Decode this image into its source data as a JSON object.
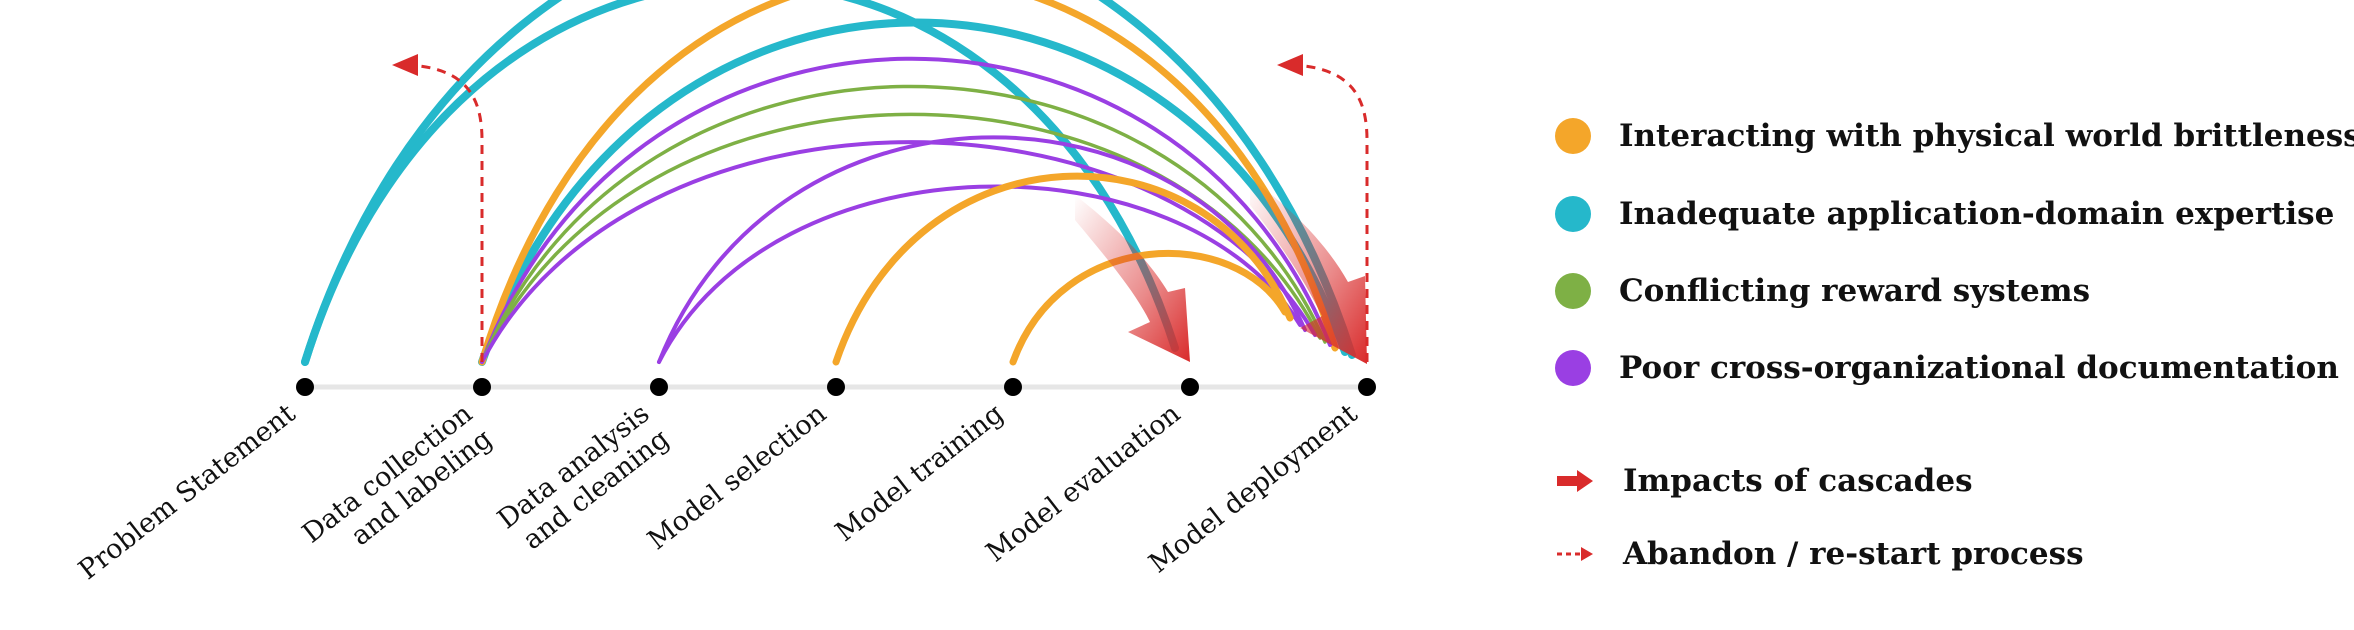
{
  "colors": {
    "physical_world": "#f4a62a",
    "domain_expertise": "#25b8cb",
    "reward_systems": "#7eb045",
    "documentation": "#9a3fe3",
    "impacts": "#d92b2b",
    "abandon": "#d92b2b",
    "timeline": "#e6e6e6",
    "node": "#000000"
  },
  "stages": [
    {
      "lines": [
        "Problem Statement"
      ]
    },
    {
      "lines": [
        "Data collection",
        "and labeling"
      ]
    },
    {
      "lines": [
        "Data analysis",
        "and cleaning"
      ]
    },
    {
      "lines": [
        "Model selection"
      ]
    },
    {
      "lines": [
        "Model training"
      ]
    },
    {
      "lines": [
        "Model evaluation"
      ]
    },
    {
      "lines": [
        "Model deployment"
      ]
    }
  ],
  "cascades": [
    {
      "type": "domain_expertise",
      "from": 0,
      "to": 6
    },
    {
      "type": "domain_expertise",
      "from": 0,
      "to": 5
    },
    {
      "type": "domain_expertise",
      "from": 1,
      "to": 6
    },
    {
      "type": "physical_world",
      "from": 1,
      "to": 6
    },
    {
      "type": "documentation",
      "from": 1,
      "to": 6
    },
    {
      "type": "reward_systems",
      "from": 1,
      "to": 6
    },
    {
      "type": "reward_systems",
      "from": 1,
      "to": 6
    },
    {
      "type": "documentation",
      "from": 1,
      "to": 6
    },
    {
      "type": "documentation",
      "from": 2,
      "to": 6
    },
    {
      "type": "documentation",
      "from": 2,
      "to": 6
    },
    {
      "type": "physical_world",
      "from": 3,
      "to": 6
    },
    {
      "type": "physical_world",
      "from": 4,
      "to": 6
    }
  ],
  "impacts": [
    5,
    6
  ],
  "abandon": [
    1,
    6
  ],
  "legend": {
    "physical_world": "Interacting with physical world brittleness",
    "domain_expertise": "Inadequate application-domain expertise",
    "reward_systems": "Conflicting reward systems",
    "documentation": "Poor cross-organizational documentation",
    "impacts": "Impacts of cascades",
    "abandon": "Abandon / re-start process"
  }
}
